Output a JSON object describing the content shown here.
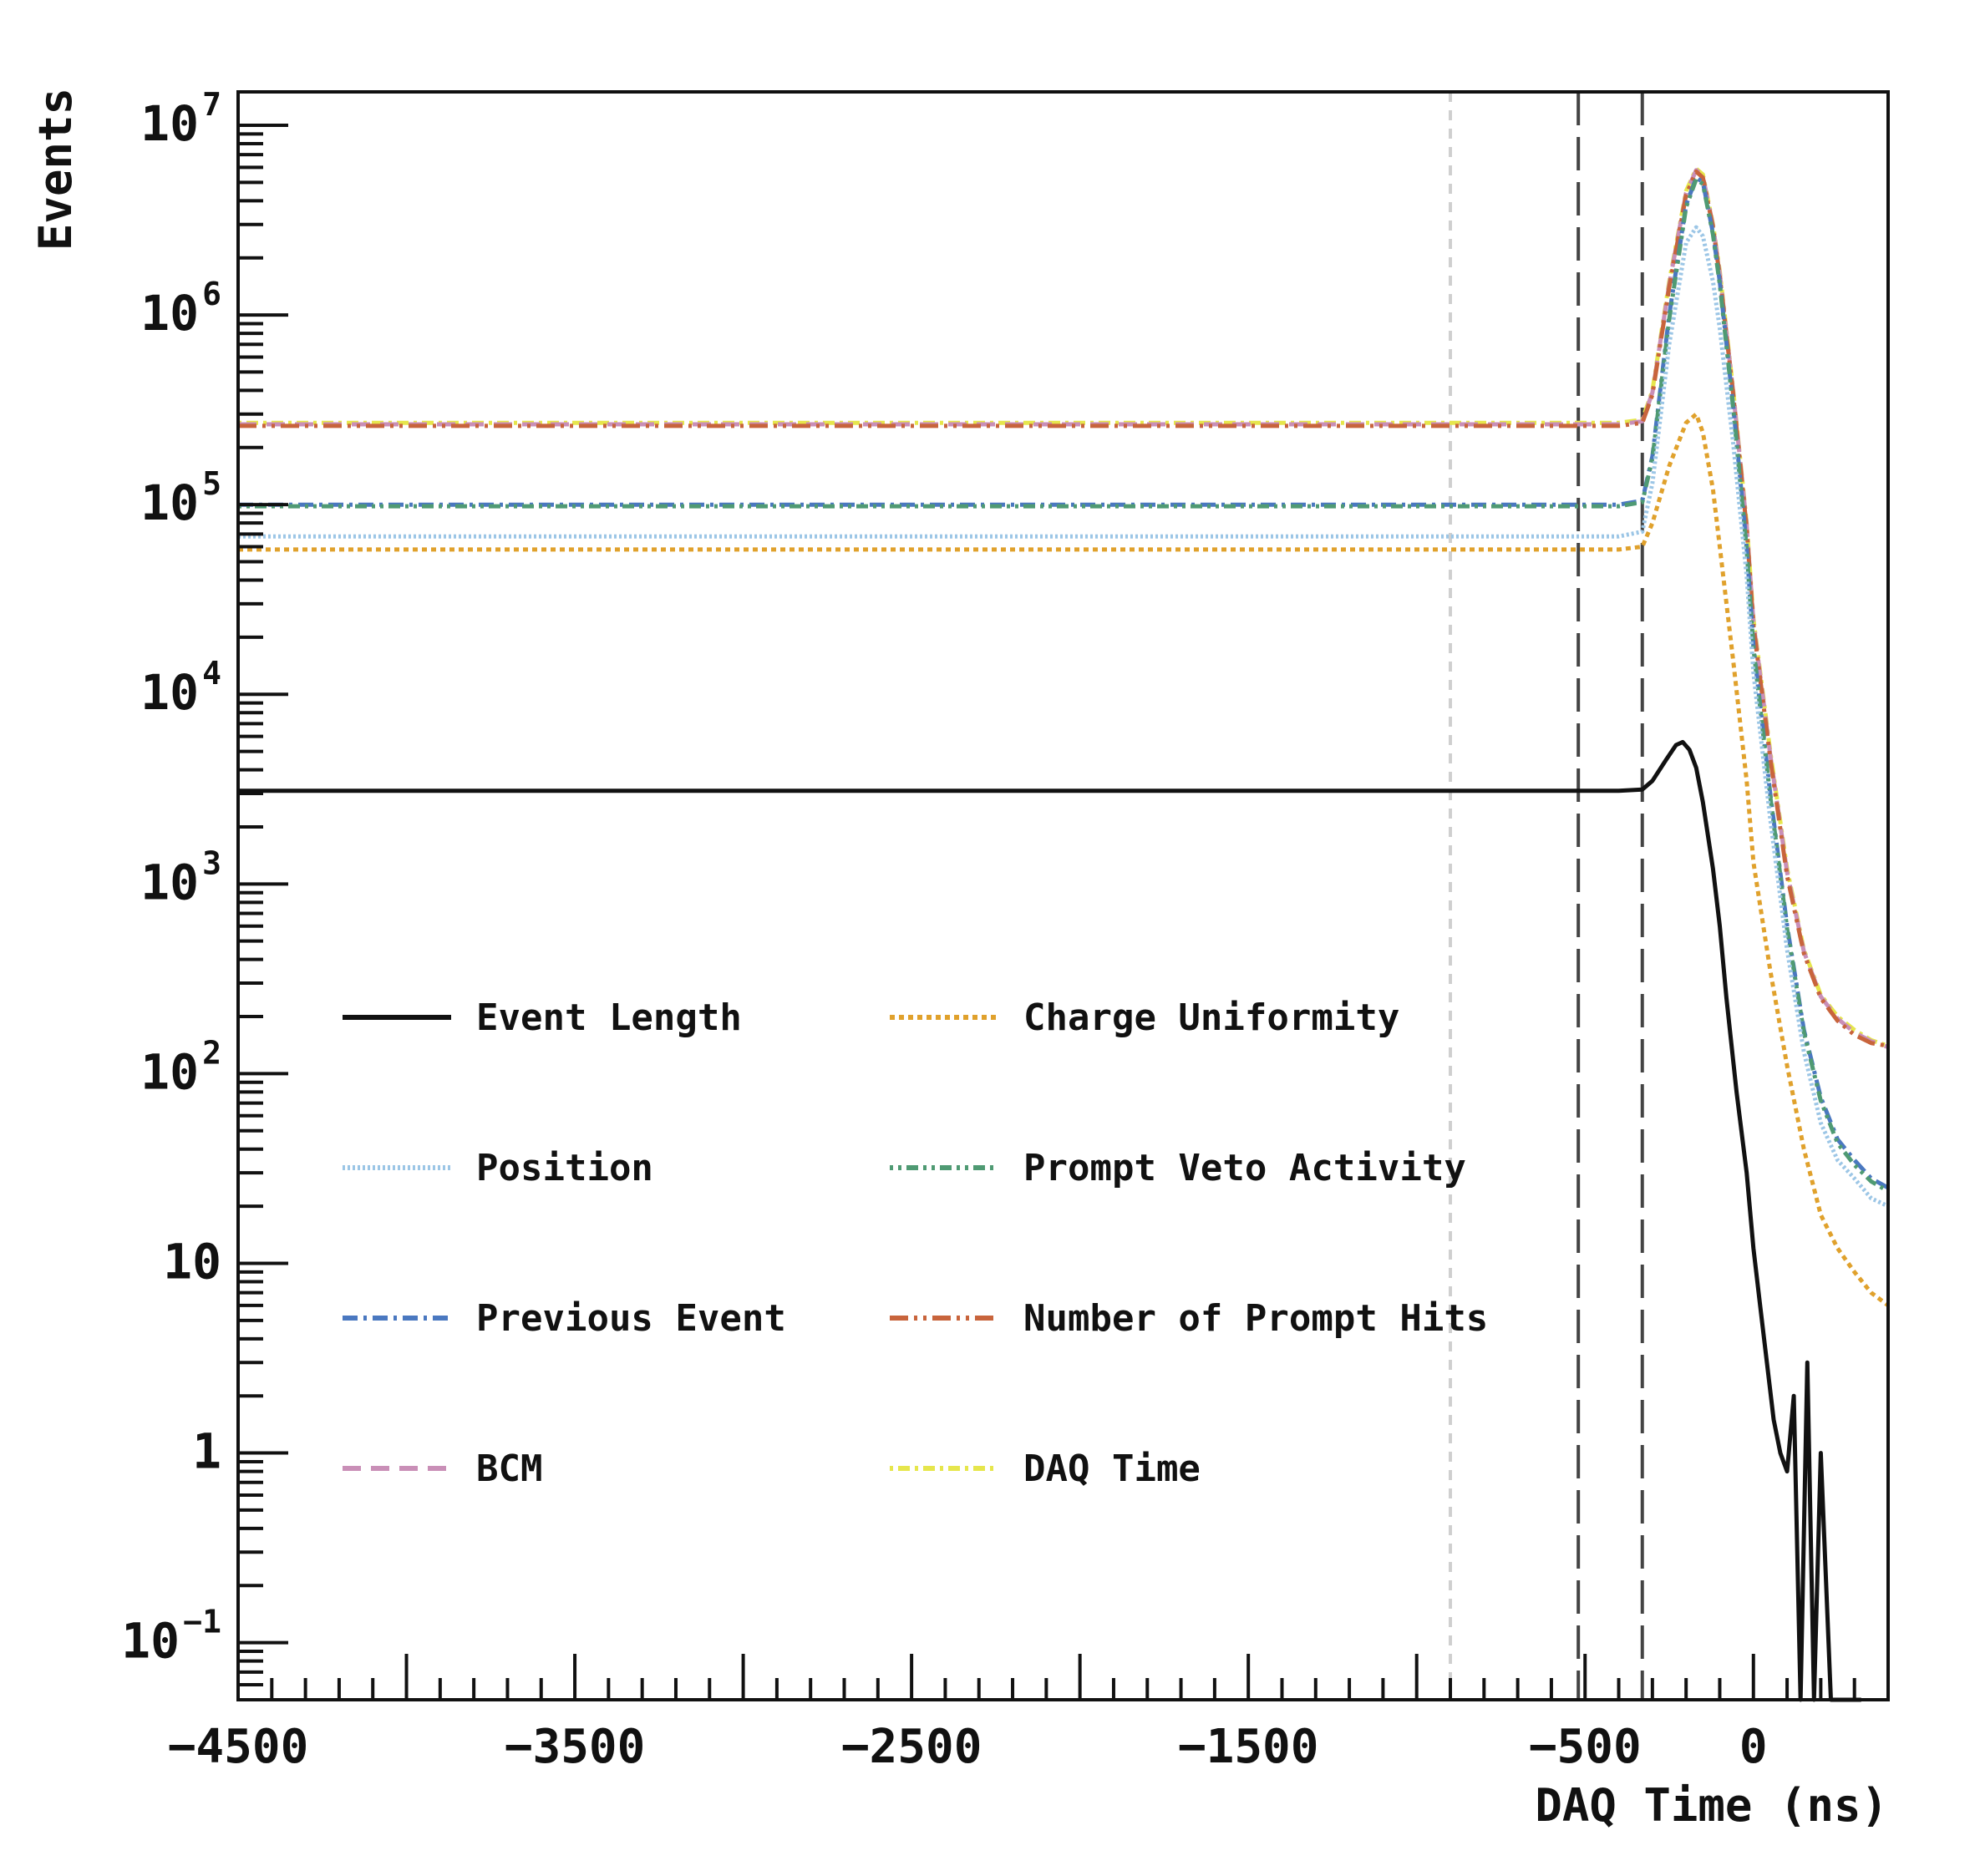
{
  "chart_data": {
    "type": "line",
    "xlabel": "DAQ Time (ns)",
    "ylabel": "Events",
    "y_scale": "log",
    "xlim": [
      -4500,
      400
    ],
    "ylim": [
      0.05,
      15000000
    ],
    "x_ticks": [
      {
        "value": -4500,
        "label": "−4500"
      },
      {
        "value": -3500,
        "label": "−3500"
      },
      {
        "value": -2500,
        "label": "−2500"
      },
      {
        "value": -1500,
        "label": "−1500"
      },
      {
        "value": -500,
        "label": "−500"
      },
      {
        "value": 0,
        "label": "0"
      }
    ],
    "y_ticks": [
      {
        "value": 0.1,
        "base": "10",
        "exp": "−1"
      },
      {
        "value": 1,
        "base": "1",
        "exp": ""
      },
      {
        "value": 10,
        "base": "10",
        "exp": ""
      },
      {
        "value": 100,
        "base": "10",
        "exp": "2"
      },
      {
        "value": 1000,
        "base": "10",
        "exp": "3"
      },
      {
        "value": 10000,
        "base": "10",
        "exp": "4"
      },
      {
        "value": 100000,
        "base": "10",
        "exp": "5"
      },
      {
        "value": 1000000,
        "base": "10",
        "exp": "6"
      },
      {
        "value": 10000000,
        "base": "10",
        "exp": "7"
      }
    ],
    "vertical_lines": [
      {
        "x": -900,
        "color": "#cfcfcf",
        "style": "dashed-short"
      },
      {
        "x": -520,
        "color": "#444444",
        "style": "dashed-long"
      },
      {
        "x": -330,
        "color": "#444444",
        "style": "dashed-long"
      }
    ],
    "series": [
      {
        "name": "DAQ Time",
        "color": "#e6e64c",
        "dash": "4 6 14 6",
        "x": [
          -4500,
          -3000,
          -1500,
          -400,
          -330,
          -300,
          -250,
          -200,
          -170,
          -150,
          -120,
          -100,
          -60,
          -20,
          0,
          50,
          100,
          150,
          200,
          250,
          300,
          350,
          400
        ],
        "y": [
          270000,
          270000,
          270000,
          270000,
          280000,
          400000,
          1500000,
          4500000,
          5900000,
          5500000,
          3000000,
          1700000,
          400000,
          80000,
          25000,
          5000,
          1200,
          450,
          260,
          200,
          170,
          150,
          140
        ]
      },
      {
        "name": "BCM",
        "color": "#c98fb7",
        "dash": "22 12",
        "x": [
          -4500,
          -3000,
          -1500,
          -400,
          -330,
          -300,
          -250,
          -200,
          -170,
          -150,
          -120,
          -100,
          -60,
          -20,
          0,
          50,
          100,
          150,
          200,
          250,
          300,
          350,
          400
        ],
        "y": [
          265000,
          265000,
          265000,
          265000,
          275000,
          390000,
          1450000,
          4400000,
          5800000,
          5400000,
          2950000,
          1650000,
          390000,
          78000,
          24000,
          4800,
          1150,
          440,
          255,
          195,
          165,
          148,
          138
        ]
      },
      {
        "name": "Number of Prompt Hits",
        "color": "#c8643c",
        "dash": "22 7 4 7 4 7",
        "x": [
          -4500,
          -3000,
          -1500,
          -400,
          -330,
          -300,
          -250,
          -200,
          -170,
          -150,
          -120,
          -100,
          -60,
          -20,
          0,
          50,
          100,
          150,
          200,
          250,
          300,
          350,
          400
        ],
        "y": [
          260000,
          260000,
          260000,
          260000,
          270000,
          380000,
          1400000,
          4300000,
          5700000,
          5300000,
          2900000,
          1600000,
          380000,
          75000,
          23000,
          4600,
          1100,
          430,
          250,
          190,
          160,
          145,
          140
        ]
      },
      {
        "name": "Previous Event",
        "color": "#4a78c0",
        "dash": "18 7 4 7",
        "x": [
          -4500,
          -3000,
          -1500,
          -400,
          -330,
          -300,
          -250,
          -200,
          -170,
          -150,
          -120,
          -100,
          -60,
          -20,
          0,
          50,
          100,
          150,
          200,
          250,
          300,
          350,
          400
        ],
        "y": [
          100000,
          100000,
          100000,
          100000,
          105000,
          180000,
          1000000,
          3800000,
          5300000,
          5000000,
          2700000,
          1500000,
          330000,
          60000,
          18000,
          3000,
          600,
          170,
          75,
          45,
          35,
          28,
          25
        ]
      },
      {
        "name": "Prompt Veto Activity",
        "color": "#4f9a73",
        "dash": "4 6 4 6 14 6",
        "x": [
          -4500,
          -3000,
          -1500,
          -400,
          -330,
          -300,
          -250,
          -200,
          -170,
          -150,
          -120,
          -100,
          -60,
          -20,
          0,
          50,
          100,
          150,
          200,
          250,
          300,
          350,
          400
        ],
        "y": [
          98000,
          98000,
          98000,
          98000,
          103000,
          175000,
          950000,
          3700000,
          5200000,
          4900000,
          2650000,
          1450000,
          320000,
          58000,
          17500,
          2900,
          580,
          165,
          72,
          43,
          33,
          27,
          24
        ]
      },
      {
        "name": "Position",
        "color": "#9cc6e6",
        "dash": "3 3",
        "x": [
          -4500,
          -3000,
          -1500,
          -400,
          -330,
          -300,
          -250,
          -200,
          -170,
          -150,
          -120,
          -100,
          -60,
          -20,
          0,
          50,
          100,
          150,
          200,
          250,
          300,
          350,
          400
        ],
        "y": [
          68000,
          68000,
          68000,
          68000,
          72000,
          130000,
          700000,
          2400000,
          2900000,
          2600000,
          1500000,
          850000,
          210000,
          42000,
          13000,
          2200,
          450,
          130,
          55,
          35,
          28,
          22,
          20
        ]
      },
      {
        "name": "Charge Uniformity",
        "color": "#e0a12c",
        "dash": "6 5",
        "x": [
          -4500,
          -3000,
          -1500,
          -400,
          -330,
          -300,
          -250,
          -200,
          -170,
          -150,
          -120,
          -100,
          -60,
          -20,
          0,
          50,
          100,
          150,
          200,
          250,
          300,
          350,
          400
        ],
        "y": [
          58000,
          58000,
          58000,
          58000,
          60000,
          80000,
          160000,
          270000,
          300000,
          240000,
          120000,
          60000,
          15000,
          3500,
          1300,
          350,
          110,
          40,
          18,
          12,
          9,
          7,
          6
        ]
      },
      {
        "name": "Event Length",
        "color": "#111111",
        "dash": "",
        "x": [
          -4500,
          -3000,
          -1500,
          -400,
          -330,
          -300,
          -260,
          -230,
          -210,
          -190,
          -170,
          -150,
          -120,
          -100,
          -80,
          -50,
          -20,
          0,
          20,
          40,
          60,
          80,
          100,
          120,
          140,
          160,
          180,
          200,
          230,
          260,
          290,
          320
        ],
        "y": [
          3100,
          3100,
          3100,
          3100,
          3150,
          3500,
          4500,
          5400,
          5600,
          5100,
          4100,
          2700,
          1200,
          600,
          250,
          80,
          30,
          12,
          6,
          3,
          1.5,
          1,
          0.8,
          2,
          0.05,
          3,
          0.05,
          1,
          0.05,
          0.05,
          0.05,
          0.05
        ]
      }
    ],
    "legend": {
      "placement": "center-left",
      "columns": [
        [
          "Event Length",
          "Position",
          "Previous Event",
          "BCM"
        ],
        [
          "Charge Uniformity",
          "Prompt Veto Activity",
          "Number of Prompt Hits",
          "DAQ Time"
        ]
      ]
    }
  }
}
